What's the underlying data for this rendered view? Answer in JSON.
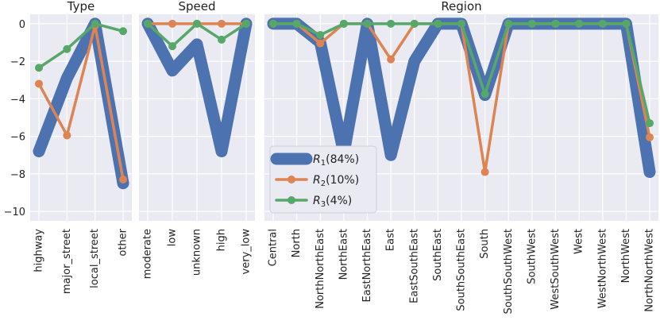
{
  "chart_data": {
    "type": "line",
    "ylim": [
      -10.5,
      0.5
    ],
    "yticks": [
      0,
      -2,
      -4,
      -6,
      -8,
      -10
    ],
    "ytick_labels": [
      "0",
      "−2",
      "−4",
      "−6",
      "−8",
      "−10"
    ],
    "grid": true,
    "legend_placement": "center-left of Region panel",
    "colors": {
      "R1": "#4c72b0",
      "R2": "#dd8452",
      "R3": "#55a868",
      "panel": "#eaeaf2"
    },
    "legend": [
      {
        "key": "R1",
        "label_main": "R",
        "label_sub": "1",
        "label_rest": "(84%)"
      },
      {
        "key": "R2",
        "label_main": "R",
        "label_sub": "2",
        "label_rest": "(10%)"
      },
      {
        "key": "R3",
        "label_main": "R",
        "label_sub": "3",
        "label_rest": "(4%)"
      }
    ],
    "panels": [
      {
        "title": "Type",
        "categories": [
          "highway",
          "major_street",
          "local_street",
          "other"
        ],
        "series": [
          {
            "key": "R1",
            "values": [
              -6.8,
              -2.9,
              0.0,
              -8.5
            ]
          },
          {
            "key": "R2",
            "values": [
              -3.2,
              -5.95,
              -0.1,
              -8.3
            ]
          },
          {
            "key": "R3",
            "values": [
              -2.35,
              -1.35,
              0.0,
              -0.4
            ]
          }
        ]
      },
      {
        "title": "Speed",
        "categories": [
          "moderate",
          "low",
          "unknown",
          "high",
          "very_low"
        ],
        "series": [
          {
            "key": "R1",
            "values": [
              0.0,
              -2.5,
              -1.1,
              -6.8,
              0.0
            ]
          },
          {
            "key": "R2",
            "values": [
              0.0,
              0.0,
              0.0,
              0.0,
              0.0
            ]
          },
          {
            "key": "R3",
            "values": [
              0.0,
              -1.2,
              0.0,
              -0.85,
              0.0
            ]
          }
        ]
      },
      {
        "title": "Region",
        "categories": [
          "Central",
          "North",
          "NorthNorthEast",
          "NorthEast",
          "EastNorthEast",
          "East",
          "EastSouthEast",
          "SouthEast",
          "SouthSouthEast",
          "South",
          "SouthSouthWest",
          "SouthWest",
          "WestSouthWest",
          "West",
          "WestNorthWest",
          "NorthWest",
          "NorthNorthWest"
        ],
        "series": [
          {
            "key": "R1",
            "values": [
              0.0,
              0.0,
              -1.0,
              -6.9,
              0.0,
              -7.0,
              -2.0,
              0.0,
              0.0,
              -3.8,
              0.0,
              0.0,
              0.0,
              0.0,
              0.0,
              0.0,
              -7.9
            ]
          },
          {
            "key": "R2",
            "values": [
              0.0,
              0.0,
              -1.05,
              0.0,
              0.0,
              -1.9,
              0.0,
              0.0,
              0.0,
              -7.9,
              0.0,
              0.0,
              0.0,
              0.0,
              0.0,
              0.0,
              -6.05
            ]
          },
          {
            "key": "R3",
            "values": [
              0.0,
              0.0,
              -0.6,
              0.0,
              0.0,
              0.0,
              0.0,
              0.0,
              0.0,
              -3.75,
              0.0,
              0.0,
              0.0,
              0.0,
              0.0,
              0.0,
              -5.3
            ]
          }
        ]
      }
    ]
  }
}
